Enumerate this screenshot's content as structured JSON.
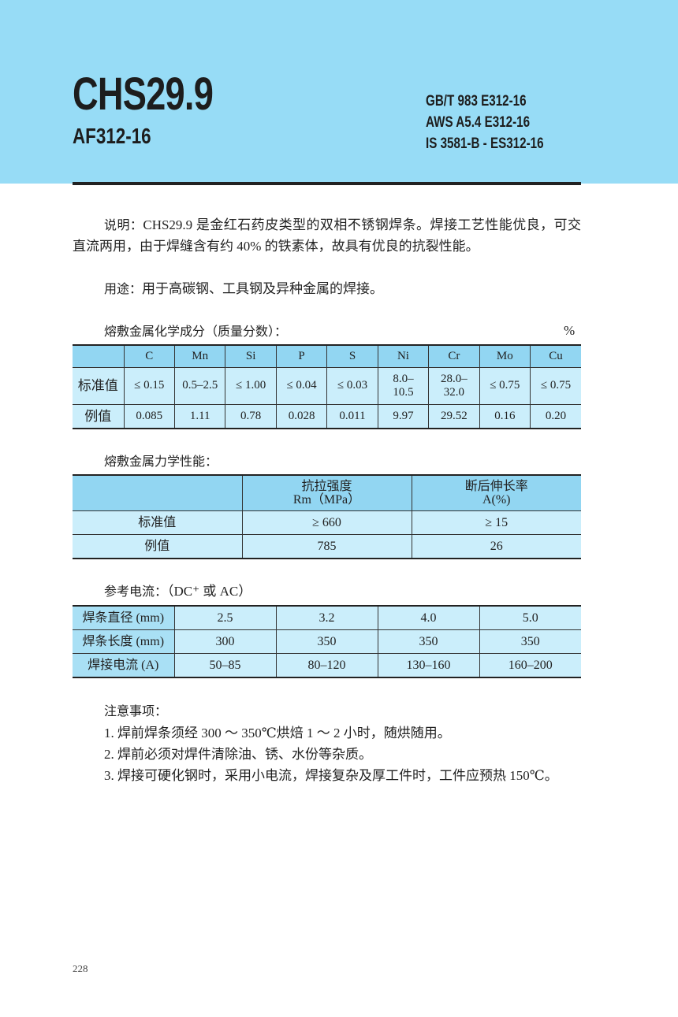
{
  "header": {
    "title": "CHS29.9",
    "subtitle": "AF312-16",
    "standards": [
      "GB/T 983 E312-16",
      "AWS A5.4 E312-16",
      "IS 3581-B - ES312-16"
    ]
  },
  "description": {
    "label": "说明：",
    "text": "CHS29.9 是金红石药皮类型的双相不锈钢焊条。焊接工艺性能优良，可交直流两用，由于焊缝含有约 40% 的铁素体，故具有优良的抗裂性能。"
  },
  "usage": {
    "label": "用途：",
    "text": "用于高碳钢、工具钢及异种金属的焊接。"
  },
  "chemistry": {
    "title": "熔敷金属化学成分（质量分数）：",
    "unit": "%",
    "columns": [
      "",
      "C",
      "Mn",
      "Si",
      "P",
      "S",
      "Ni",
      "Cr",
      "Mo",
      "Cu"
    ],
    "rows": [
      [
        "标准值",
        "≤ 0.15",
        "0.5–2.5",
        "≤ 1.00",
        "≤ 0.04",
        "≤ 0.03",
        "8.0–\n10.5",
        "28.0–\n32.0",
        "≤ 0.75",
        "≤ 0.75"
      ],
      [
        "例值",
        "0.085",
        "1.11",
        "0.78",
        "0.028",
        "0.011",
        "9.97",
        "29.52",
        "0.16",
        "0.20"
      ]
    ]
  },
  "mechanical": {
    "title": "熔敷金属力学性能：",
    "columns": [
      "",
      "抗拉强度\nRm（MPa）",
      "断后伸长率\nA(%)"
    ],
    "rows": [
      [
        "标准值",
        "≥ 660",
        "≥ 15"
      ],
      [
        "例值",
        "785",
        "26"
      ]
    ]
  },
  "current": {
    "title": "参考电流：",
    "note": "（DC⁺ 或 AC）",
    "rows": [
      [
        "焊条直径 (mm)",
        "2.5",
        "3.2",
        "4.0",
        "5.0"
      ],
      [
        "焊条长度 (mm)",
        "300",
        "350",
        "350",
        "350"
      ],
      [
        "焊接电流 (A)",
        "50–85",
        "80–120",
        "130–160",
        "160–200"
      ]
    ]
  },
  "notes": {
    "title": "注意事项：",
    "items": [
      "1. 焊前焊条须经 300 ～ 350℃烘焙 1 ～ 2 小时，随烘随用。",
      "2. 焊前必须对焊件清除油、锈、水份等杂质。",
      "3. 焊接可硬化钢时，采用小电流，焊接复杂及厚工件时，工件应预热 150℃。"
    ]
  },
  "page_number": "228",
  "colors": {
    "banner": "#97dcf6",
    "table_header": "#92d6f2",
    "table_body": "#cbeefb"
  }
}
